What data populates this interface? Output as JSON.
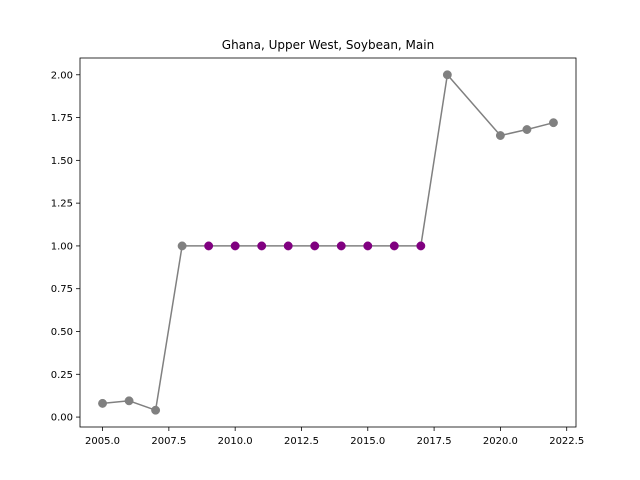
{
  "chart_data": {
    "type": "line",
    "title": "Ghana, Upper West, Soybean, Main",
    "xlabel": "",
    "ylabel": "",
    "x": [
      2005,
      2006,
      2007,
      2008,
      2009,
      2010,
      2011,
      2012,
      2013,
      2014,
      2015,
      2016,
      2017,
      2018,
      2020,
      2021,
      2022
    ],
    "series": [
      {
        "values": [
          0.08,
          0.095,
          0.04,
          1.0,
          1.0,
          1.0,
          1.0,
          1.0,
          1.0,
          1.0,
          1.0,
          1.0,
          1.0,
          2.0,
          1.645,
          1.68,
          1.72
        ],
        "line_color": "#808080",
        "marker_colors": [
          "#808080",
          "#808080",
          "#808080",
          "#808080",
          "#800080",
          "#800080",
          "#800080",
          "#800080",
          "#800080",
          "#800080",
          "#800080",
          "#800080",
          "#800080",
          "#808080",
          "#808080",
          "#808080",
          "#808080"
        ]
      }
    ],
    "xlim": [
      2004.15,
      2022.85
    ],
    "ylim": [
      -0.058,
      2.098
    ],
    "xticks": [
      "2005.0",
      "2007.5",
      "2010.0",
      "2012.5",
      "2015.0",
      "2017.5",
      "2020.0",
      "2022.5"
    ],
    "xtick_values": [
      2005,
      2007.5,
      2010,
      2012.5,
      2015,
      2017.5,
      2020,
      2022.5
    ],
    "yticks": [
      "0.00",
      "0.25",
      "0.50",
      "0.75",
      "1.00",
      "1.25",
      "1.50",
      "1.75",
      "2.00"
    ],
    "ytick_values": [
      0,
      0.25,
      0.5,
      0.75,
      1.0,
      1.25,
      1.5,
      1.75,
      2.0
    ],
    "grid": false,
    "legend": false
  }
}
